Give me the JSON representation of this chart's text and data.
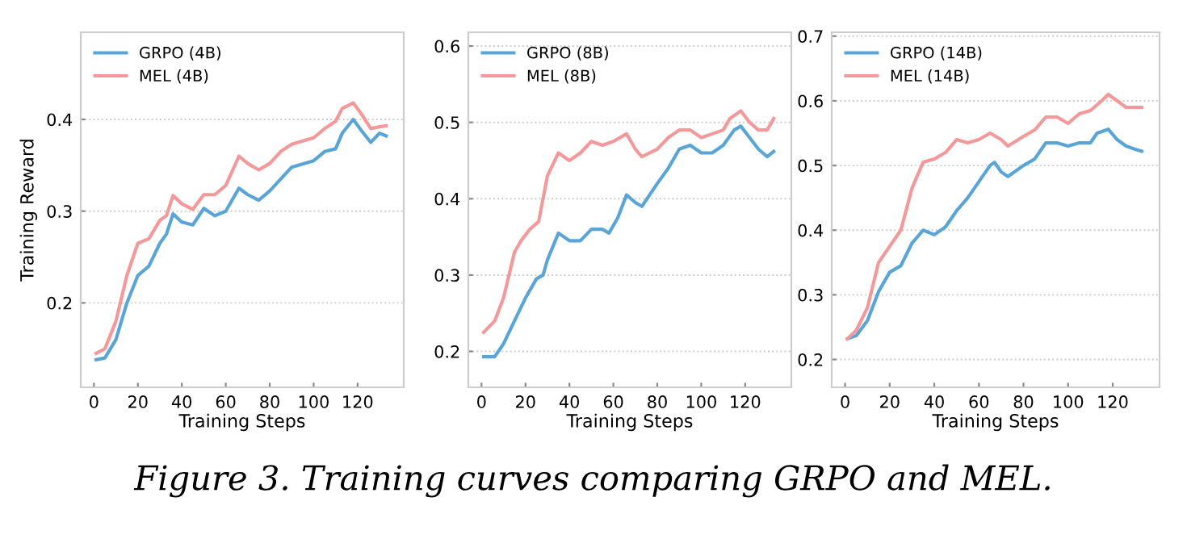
{
  "chart_data": [
    {
      "type": "line",
      "xlabel": "Training Steps",
      "ylabel": "Training Reward",
      "xlim": [
        -6,
        141
      ],
      "ylim": [
        0.108,
        0.495
      ],
      "xticks": [
        0,
        20,
        40,
        60,
        80,
        100,
        120
      ],
      "yticks": [
        {
          "value": 0.2,
          "label": "0.2"
        },
        {
          "value": 0.3,
          "label": "0.3"
        },
        {
          "value": 0.4,
          "label": "0.4"
        }
      ],
      "grid": "y",
      "legend": "top left",
      "annotations": [
        "Figure 3. Training curves comparing GRPO and MEL."
      ],
      "series": [
        {
          "name": "GRPO (4B)",
          "color": "#5aa5d8",
          "x": [
            1,
            5,
            10,
            15,
            20,
            25,
            30,
            33,
            36,
            40,
            45,
            50,
            55,
            60,
            66,
            70,
            75,
            80,
            85,
            90,
            100,
            105,
            110,
            113,
            118,
            122,
            126,
            130,
            133
          ],
          "values": [
            0.138,
            0.14,
            0.16,
            0.2,
            0.23,
            0.24,
            0.265,
            0.275,
            0.297,
            0.288,
            0.285,
            0.303,
            0.295,
            0.3,
            0.325,
            0.318,
            0.312,
            0.322,
            0.335,
            0.348,
            0.355,
            0.365,
            0.368,
            0.385,
            0.4,
            0.387,
            0.375,
            0.385,
            0.382
          ]
        },
        {
          "name": "MEL (4B)",
          "color": "#f4999a",
          "x": [
            1,
            5,
            10,
            15,
            20,
            25,
            30,
            33,
            36,
            40,
            45,
            50,
            55,
            60,
            66,
            70,
            75,
            80,
            85,
            90,
            100,
            105,
            110,
            113,
            118,
            122,
            126,
            130,
            133
          ],
          "values": [
            0.145,
            0.15,
            0.18,
            0.23,
            0.265,
            0.27,
            0.29,
            0.295,
            0.317,
            0.308,
            0.302,
            0.318,
            0.318,
            0.328,
            0.36,
            0.352,
            0.345,
            0.352,
            0.365,
            0.373,
            0.38,
            0.39,
            0.398,
            0.412,
            0.418,
            0.405,
            0.39,
            0.392,
            0.393
          ]
        }
      ]
    },
    {
      "type": "line",
      "xlabel": "Training Steps",
      "xlim": [
        -6,
        141
      ],
      "ylim": [
        0.153,
        0.618
      ],
      "xticks": [
        0,
        20,
        40,
        60,
        80,
        100,
        120
      ],
      "yticks": [
        {
          "value": 0.2,
          "label": "0.2"
        },
        {
          "value": 0.3,
          "label": "0.3"
        },
        {
          "value": 0.4,
          "label": "0.4"
        },
        {
          "value": 0.5,
          "label": "0.5"
        },
        {
          "value": 0.6,
          "label": "0.6"
        }
      ],
      "grid": "y",
      "legend": "top left",
      "series": [
        {
          "name": "GRPO (8B)",
          "color": "#5aa5d8",
          "x": [
            1,
            6,
            10,
            15,
            20,
            25,
            28,
            30,
            35,
            40,
            45,
            50,
            55,
            58,
            62,
            66,
            70,
            73,
            80,
            85,
            90,
            95,
            100,
            105,
            110,
            115,
            118,
            122,
            126,
            130,
            133
          ],
          "values": [
            0.193,
            0.193,
            0.21,
            0.24,
            0.27,
            0.295,
            0.3,
            0.32,
            0.355,
            0.345,
            0.345,
            0.36,
            0.36,
            0.355,
            0.375,
            0.405,
            0.395,
            0.39,
            0.42,
            0.44,
            0.465,
            0.47,
            0.46,
            0.46,
            0.47,
            0.49,
            0.495,
            0.48,
            0.465,
            0.455,
            0.462
          ]
        },
        {
          "name": "MEL (8B)",
          "color": "#f4999a",
          "x": [
            1,
            6,
            10,
            15,
            18,
            22,
            26,
            30,
            35,
            40,
            45,
            50,
            55,
            60,
            66,
            70,
            73,
            80,
            85,
            90,
            95,
            100,
            105,
            110,
            113,
            118,
            122,
            126,
            130,
            133
          ],
          "values": [
            0.225,
            0.24,
            0.27,
            0.33,
            0.345,
            0.36,
            0.37,
            0.43,
            0.46,
            0.45,
            0.46,
            0.475,
            0.47,
            0.475,
            0.485,
            0.465,
            0.455,
            0.465,
            0.48,
            0.49,
            0.49,
            0.48,
            0.485,
            0.49,
            0.505,
            0.515,
            0.5,
            0.49,
            0.49,
            0.505
          ]
        }
      ]
    },
    {
      "type": "line",
      "xlabel": "Training Steps",
      "xlim": [
        -6,
        141
      ],
      "ylim": [
        0.157,
        0.706
      ],
      "xticks": [
        0,
        20,
        40,
        60,
        80,
        100,
        120
      ],
      "yticks": [
        {
          "value": 0.2,
          "label": "0.2"
        },
        {
          "value": 0.3,
          "label": "0.3"
        },
        {
          "value": 0.4,
          "label": "0.4"
        },
        {
          "value": 0.5,
          "label": "0.5"
        },
        {
          "value": 0.6,
          "label": "0.6"
        },
        {
          "value": 0.7,
          "label": "0.7"
        }
      ],
      "grid": "y",
      "legend": "top left",
      "series": [
        {
          "name": "GRPO (14B)",
          "color": "#5aa5d8",
          "x": [
            1,
            5,
            10,
            15,
            20,
            25,
            30,
            35,
            40,
            45,
            50,
            55,
            60,
            65,
            67,
            70,
            73,
            80,
            85,
            90,
            95,
            100,
            105,
            110,
            113,
            118,
            122,
            126,
            130,
            133
          ],
          "values": [
            0.232,
            0.237,
            0.26,
            0.305,
            0.335,
            0.345,
            0.38,
            0.4,
            0.393,
            0.405,
            0.43,
            0.45,
            0.475,
            0.5,
            0.505,
            0.49,
            0.483,
            0.5,
            0.51,
            0.535,
            0.535,
            0.53,
            0.535,
            0.535,
            0.55,
            0.556,
            0.54,
            0.53,
            0.525,
            0.522
          ]
        },
        {
          "name": "MEL (14B)",
          "color": "#f4999a",
          "x": [
            1,
            5,
            10,
            15,
            20,
            25,
            30,
            35,
            40,
            45,
            50,
            55,
            60,
            65,
            70,
            73,
            80,
            85,
            90,
            95,
            100,
            105,
            110,
            115,
            118,
            122,
            126,
            130,
            133
          ],
          "values": [
            0.232,
            0.245,
            0.28,
            0.35,
            0.375,
            0.4,
            0.465,
            0.505,
            0.51,
            0.52,
            0.54,
            0.535,
            0.54,
            0.55,
            0.54,
            0.53,
            0.545,
            0.555,
            0.575,
            0.575,
            0.565,
            0.58,
            0.585,
            0.6,
            0.61,
            0.6,
            0.59,
            0.59,
            0.59
          ]
        }
      ]
    }
  ]
}
